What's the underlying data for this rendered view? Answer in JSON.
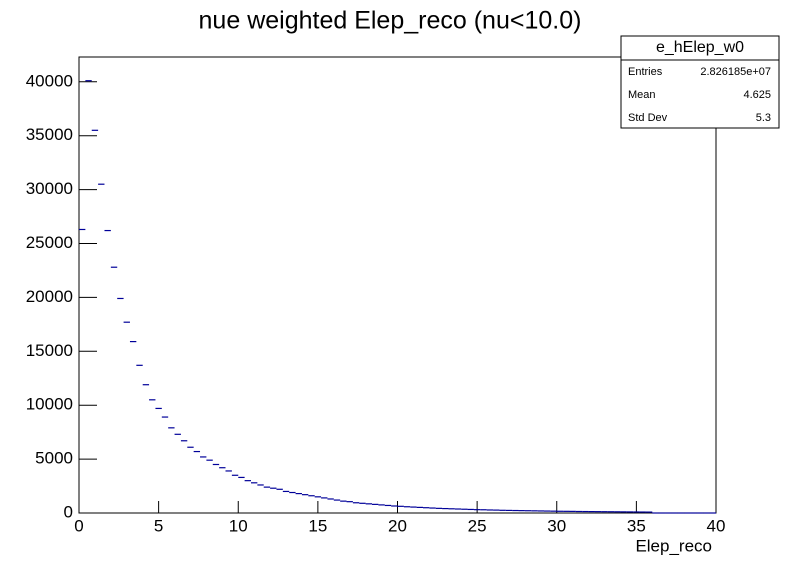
{
  "chart_data": {
    "type": "histogram",
    "title": "nue weighted Elep_reco (nu<10.0)",
    "x_label": "Elep_reco",
    "color": "#000099",
    "bins": [
      0,
      0.4,
      0.8,
      1.2,
      1.6,
      2,
      2.4,
      2.8,
      3.2,
      3.6,
      4,
      4.4,
      4.8,
      5.2,
      5.6,
      6,
      6.4,
      6.8,
      7.2,
      7.6,
      8,
      8.4,
      8.8,
      9.2,
      9.6,
      10,
      10.4,
      10.8,
      11.2,
      11.6,
      12,
      12.4,
      12.8,
      13.2,
      13.6,
      14,
      14.4,
      14.8,
      15.2,
      15.6,
      16,
      16.4,
      16.8,
      17.2,
      17.6,
      18,
      18.4,
      18.8,
      19.2,
      19.6,
      20,
      20.4,
      20.8,
      21.2,
      21.6,
      22,
      22.4,
      22.8,
      23.2,
      23.6,
      24,
      24.4,
      24.8,
      25.2,
      25.6,
      26,
      26.4,
      26.8,
      27.2,
      27.6,
      28,
      28.4,
      28.8,
      29.2,
      29.6,
      30,
      30.4,
      30.8,
      31.2,
      31.6,
      32,
      32.4,
      32.8,
      33.2,
      33.6,
      34,
      34.4,
      34.8,
      35.2,
      35.6,
      36,
      36.4,
      36.8,
      37.2,
      37.6,
      38,
      38.4,
      38.8,
      39.2,
      39.6,
      40
    ],
    "values": [
      26300,
      40100,
      35500,
      30500,
      26200,
      22800,
      19900,
      17700,
      15900,
      13700,
      11900,
      10500,
      9700,
      8900,
      7900,
      7300,
      6700,
      6100,
      5700,
      5200,
      4900,
      4500,
      4200,
      3900,
      3500,
      3300,
      3000,
      2800,
      2600,
      2400,
      2300,
      2200,
      2000,
      1900,
      1800,
      1700,
      1600,
      1500,
      1400,
      1300,
      1200,
      1100,
      1050,
      950,
      900,
      850,
      800,
      750,
      700,
      650,
      620,
      580,
      550,
      520,
      490,
      460,
      430,
      410,
      390,
      370,
      350,
      330,
      310,
      300,
      280,
      270,
      250,
      240,
      230,
      220,
      210,
      200,
      190,
      180,
      170,
      160,
      155,
      150,
      140,
      135,
      130,
      125,
      120,
      115,
      110,
      105,
      100,
      95,
      90,
      85,
      0,
      0,
      0,
      0,
      0,
      0,
      0,
      0,
      0,
      0
    ],
    "xlim": [
      0,
      40
    ],
    "xticks": [
      0,
      5,
      10,
      15,
      20,
      25,
      30,
      35,
      40
    ],
    "ylim": [
      0,
      42300
    ],
    "yticks": [
      0,
      5000,
      10000,
      15000,
      20000,
      25000,
      30000,
      35000,
      40000
    ],
    "stats": {
      "name": "e_hElep_w0",
      "rows": [
        [
          "Entries",
          "2.826185e+07"
        ],
        [
          "Mean",
          "4.625"
        ],
        [
          "Std Dev",
          "5.3"
        ]
      ]
    }
  }
}
